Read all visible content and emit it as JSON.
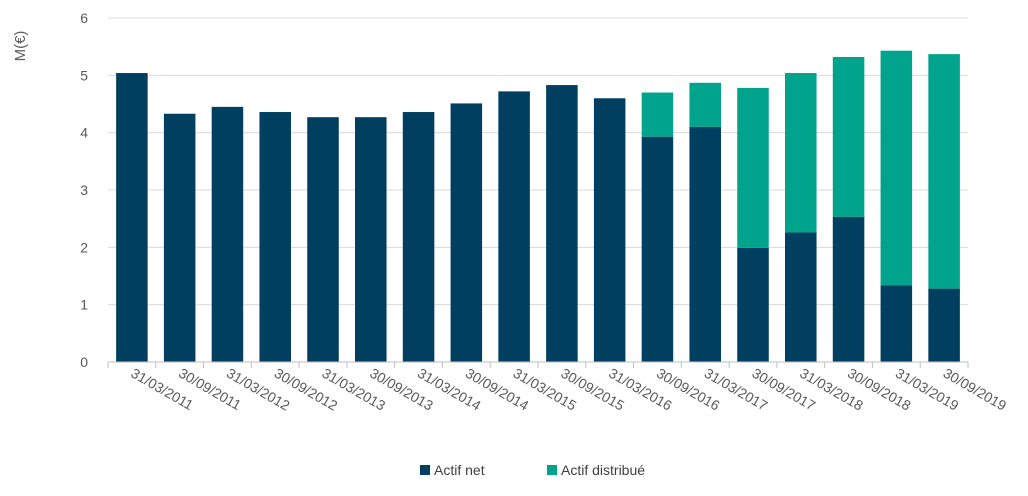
{
  "chart_data": {
    "type": "bar",
    "stacked": true,
    "title": "",
    "xlabel": "",
    "ylabel": "M(€)",
    "ylim": [
      0,
      6
    ],
    "yticks": [
      0,
      1,
      2,
      3,
      4,
      5,
      6
    ],
    "grid": true,
    "legend_position": "bottom-center",
    "categories": [
      "31/03/2011",
      "30/09/2011",
      "31/03/2012",
      "30/09/2012",
      "31/03/2013",
      "30/09/2013",
      "31/03/2014",
      "30/09/2014",
      "31/03/2015",
      "30/09/2015",
      "31/03/2016",
      "30/09/2016",
      "31/03/2017",
      "30/09/2017",
      "31/03/2018",
      "30/09/2018",
      "31/03/2019",
      "30/09/2019"
    ],
    "series": [
      {
        "name": "Actif net",
        "color": "#003f5f",
        "values": [
          5.04,
          4.33,
          4.45,
          4.36,
          4.27,
          4.27,
          4.36,
          4.51,
          4.72,
          4.83,
          4.6,
          3.93,
          4.1,
          1.99,
          2.26,
          2.53,
          1.34,
          1.28
        ]
      },
      {
        "name": "Actif distribué",
        "color": "#00a38c",
        "values": [
          0,
          0,
          0,
          0,
          0,
          0,
          0,
          0,
          0,
          0,
          0,
          0.77,
          0.77,
          2.79,
          2.78,
          2.79,
          4.09,
          4.09
        ]
      }
    ]
  }
}
